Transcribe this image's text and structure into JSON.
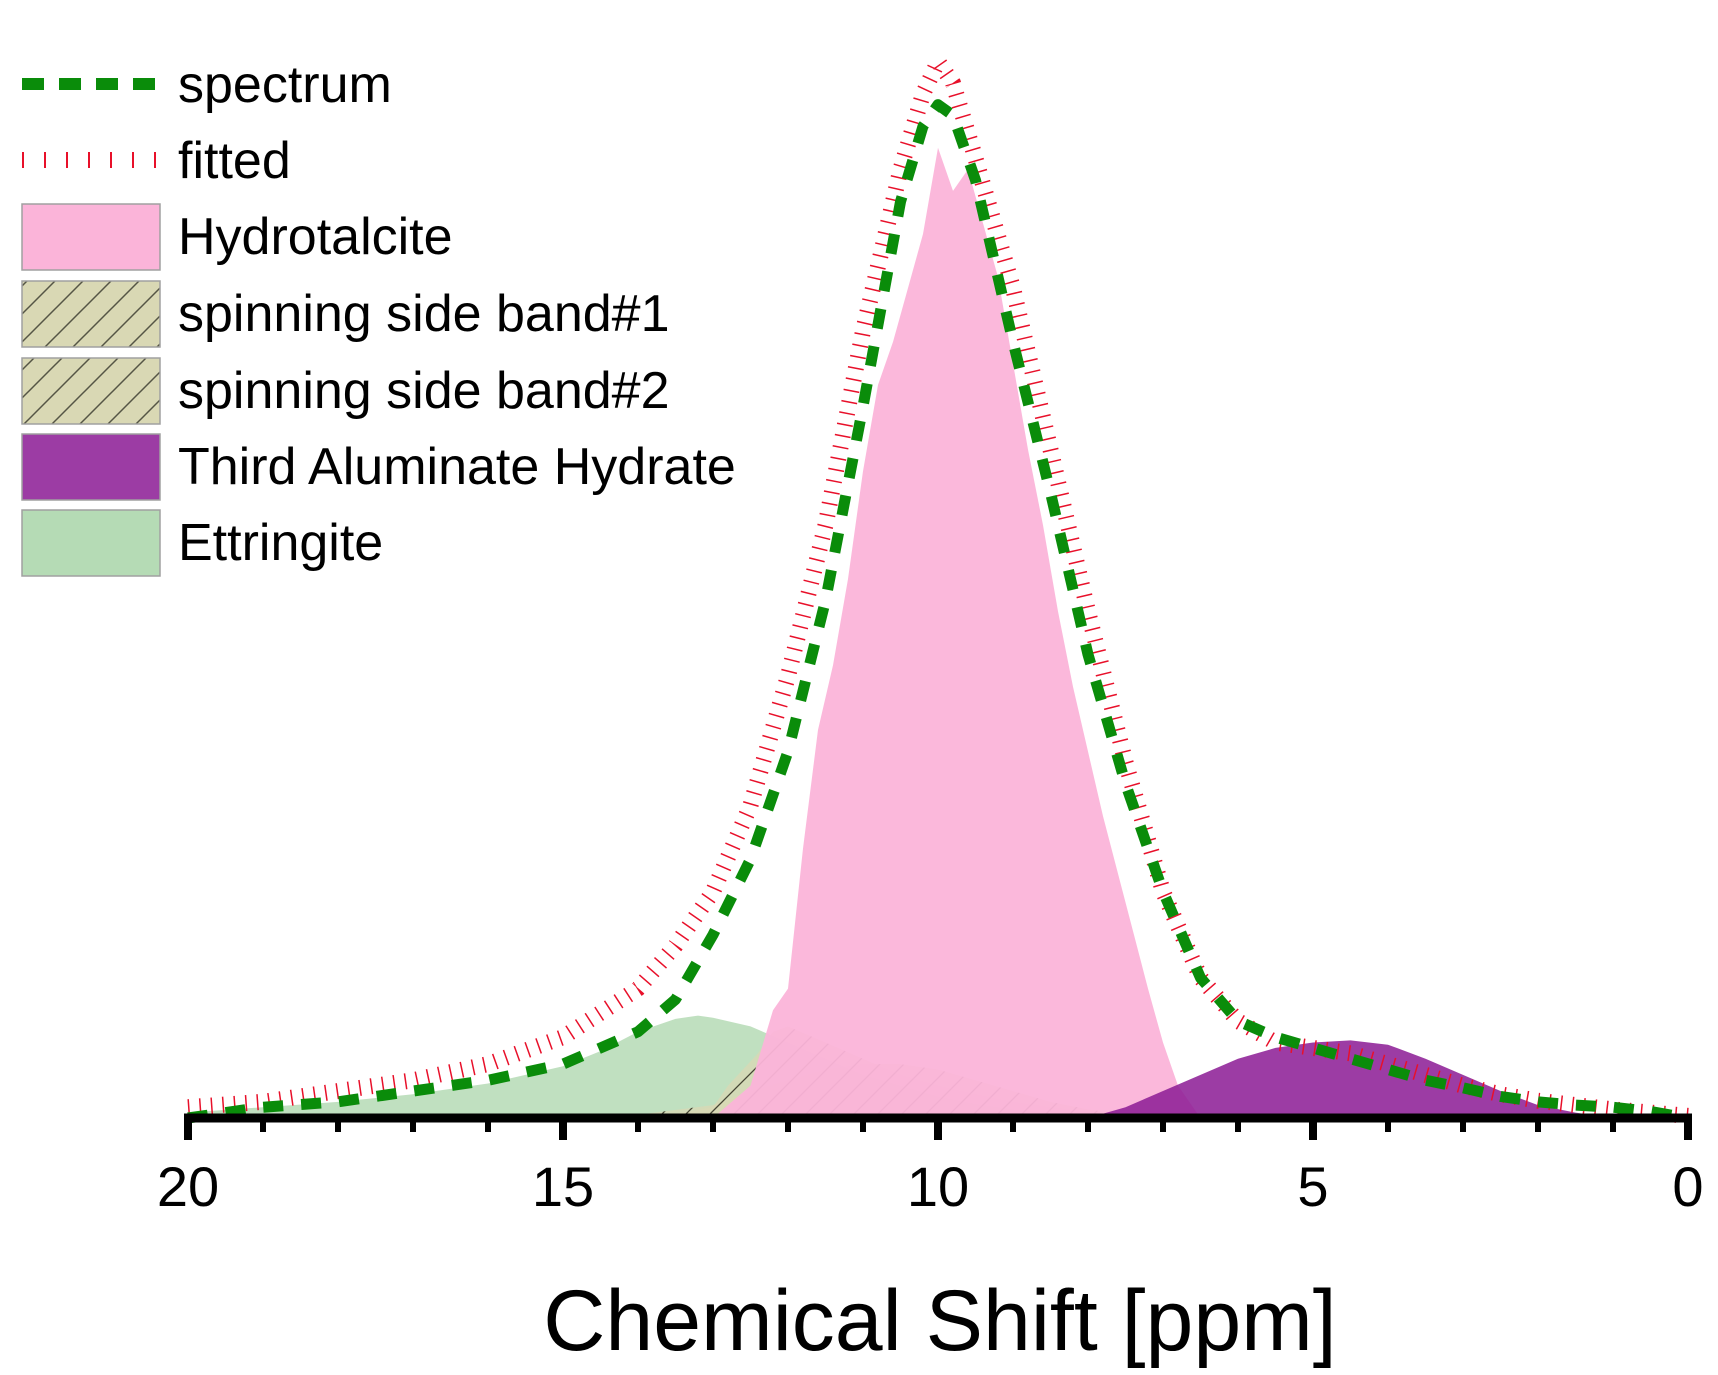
{
  "chart_data": {
    "type": "area",
    "xlabel": "Chemical Shift [ppm]",
    "ylabel": "",
    "title": "",
    "xlim": [
      20,
      0
    ],
    "ylim": [
      0,
      1.0
    ],
    "x_reversed": true,
    "x_ticks": [
      20,
      15,
      10,
      5,
      0
    ],
    "x_minor_step": 1,
    "grid": false,
    "legend_position": "top-left",
    "colors": {
      "spectrum": "#0a8c0a",
      "fitted": "#e8102a",
      "hydrotalcite": "#fbb4d9",
      "side_band": "#d9d8b4",
      "third_aluminate": "#8b1a94",
      "ettringite": "#b5dbb5"
    },
    "legend": [
      {
        "key": "spectrum",
        "label": "spectrum",
        "style": "dashed-line"
      },
      {
        "key": "fitted",
        "label": "fitted",
        "style": "ticked-line"
      },
      {
        "key": "hydrotalcite",
        "label": "Hydrotalcite",
        "style": "fill"
      },
      {
        "key": "ssb1",
        "label": "spinning side band#1",
        "style": "hatched-fill"
      },
      {
        "key": "ssb2",
        "label": "spinning side band#2",
        "style": "hatched-fill"
      },
      {
        "key": "third_aluminate",
        "label": "Third Aluminate Hydrate",
        "style": "fill"
      },
      {
        "key": "ettringite",
        "label": "Ettringite",
        "style": "fill"
      }
    ],
    "series": [
      {
        "name": "spectrum",
        "x": [
          20,
          19,
          18,
          17,
          16,
          15,
          14,
          13.5,
          13,
          12.5,
          12,
          11.5,
          11,
          10.5,
          10.2,
          10,
          9.8,
          9.5,
          9,
          8.5,
          8,
          7.5,
          7,
          6.5,
          6,
          5.5,
          5,
          4.5,
          4,
          3.5,
          3,
          2.5,
          2,
          1.5,
          1,
          0.5,
          0
        ],
        "y": [
          0.0,
          0.01,
          0.015,
          0.025,
          0.035,
          0.05,
          0.08,
          0.11,
          0.17,
          0.24,
          0.34,
          0.48,
          0.66,
          0.85,
          0.92,
          0.94,
          0.93,
          0.87,
          0.72,
          0.58,
          0.43,
          0.31,
          0.21,
          0.13,
          0.09,
          0.075,
          0.065,
          0.055,
          0.045,
          0.035,
          0.028,
          0.02,
          0.015,
          0.012,
          0.01,
          0.006,
          0.0
        ]
      },
      {
        "name": "fitted",
        "x": [
          20,
          19,
          18,
          17,
          16,
          15,
          14,
          13.5,
          13,
          12.5,
          12,
          11.5,
          11,
          10.5,
          10.2,
          10,
          9.8,
          9.5,
          9,
          8.5,
          8,
          7.5,
          7,
          6.5,
          6,
          5.5,
          5,
          4.5,
          4,
          3.5,
          3,
          2.5,
          2,
          1.5,
          1,
          0.5,
          0
        ],
        "y": [
          0.01,
          0.015,
          0.025,
          0.035,
          0.05,
          0.075,
          0.12,
          0.16,
          0.21,
          0.29,
          0.41,
          0.55,
          0.73,
          0.88,
          0.95,
          0.98,
          0.96,
          0.89,
          0.77,
          0.62,
          0.47,
          0.33,
          0.21,
          0.13,
          0.09,
          0.07,
          0.065,
          0.06,
          0.05,
          0.04,
          0.03,
          0.022,
          0.016,
          0.012,
          0.008,
          0.005,
          0.002
        ]
      },
      {
        "name": "Hydrotalcite",
        "x": [
          13,
          12.5,
          12.2,
          12,
          11.8,
          11.6,
          11.4,
          11.2,
          11,
          10.8,
          10.6,
          10.4,
          10.2,
          10,
          9.8,
          9.6,
          9.4,
          9.2,
          9,
          8.8,
          8.6,
          8.4,
          8.2,
          8,
          7.8,
          7.5,
          7.2,
          7,
          6.8,
          6.5
        ],
        "y": [
          0.0,
          0.03,
          0.1,
          0.12,
          0.25,
          0.36,
          0.42,
          0.5,
          0.6,
          0.68,
          0.72,
          0.77,
          0.82,
          0.9,
          0.86,
          0.88,
          0.83,
          0.78,
          0.7,
          0.62,
          0.55,
          0.47,
          0.4,
          0.34,
          0.28,
          0.2,
          0.12,
          0.07,
          0.03,
          0.0
        ]
      },
      {
        "name": "spinning side band#1",
        "x": [
          14.5,
          14,
          13,
          12.5,
          12,
          11.5,
          11,
          10.5,
          10,
          9.5,
          9,
          8.5,
          8,
          7.5,
          7
        ],
        "y": [
          0.0,
          0.003,
          0.012,
          0.025,
          0.035,
          0.045,
          0.05,
          0.05,
          0.045,
          0.035,
          0.025,
          0.015,
          0.008,
          0.003,
          0.0
        ]
      },
      {
        "name": "spinning side band#2",
        "x": [
          14.5,
          14,
          13.5,
          13,
          12.8,
          12.6,
          12.4,
          12.2,
          12,
          11.5,
          11,
          10.5,
          10,
          9.5,
          9,
          8.5,
          8,
          7.5,
          7,
          6.5
        ],
        "y": [
          0.0,
          0.002,
          0.004,
          0.01,
          0.03,
          0.045,
          0.06,
          0.08,
          0.085,
          0.07,
          0.055,
          0.04,
          0.03,
          0.022,
          0.015,
          0.01,
          0.006,
          0.003,
          0.001,
          0.0
        ]
      },
      {
        "name": "Third Aluminate Hydrate",
        "x": [
          8,
          7.5,
          7,
          6.5,
          6,
          5.5,
          5,
          4.5,
          4,
          3.5,
          3,
          2.5,
          2,
          1.5,
          1
        ],
        "y": [
          0.0,
          0.01,
          0.025,
          0.04,
          0.055,
          0.065,
          0.07,
          0.072,
          0.068,
          0.055,
          0.04,
          0.025,
          0.012,
          0.005,
          0.0
        ]
      },
      {
        "name": "Ettringite",
        "x": [
          20,
          19,
          18,
          17,
          16,
          15,
          14.5,
          14,
          13.5,
          13.2,
          13,
          12.5,
          12,
          11.5,
          11,
          10.5,
          10,
          9.5,
          9,
          8.5,
          8,
          7.5,
          7
        ],
        "y": [
          0.005,
          0.01,
          0.015,
          0.022,
          0.032,
          0.048,
          0.062,
          0.08,
          0.092,
          0.095,
          0.093,
          0.085,
          0.07,
          0.055,
          0.04,
          0.03,
          0.02,
          0.013,
          0.008,
          0.005,
          0.003,
          0.001,
          0.0
        ]
      }
    ]
  }
}
